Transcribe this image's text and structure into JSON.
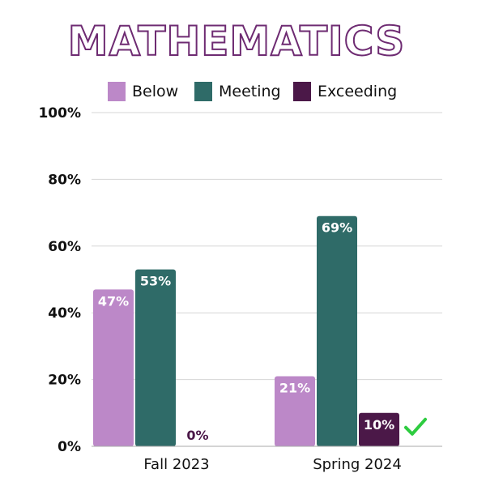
{
  "chart_data": {
    "type": "bar",
    "title": "MATHEMATICS",
    "categories": [
      "Fall 2023",
      "Spring 2024"
    ],
    "series": [
      {
        "name": "Below",
        "color": "#bc88c8",
        "values": [
          47,
          21
        ],
        "labels": [
          "47%",
          "21%"
        ]
      },
      {
        "name": "Meeting",
        "color": "#2f6b68",
        "values": [
          53,
          69
        ],
        "labels": [
          "53%",
          "69%"
        ]
      },
      {
        "name": "Exceeding",
        "color": "#4b1848",
        "values": [
          0,
          10
        ],
        "labels": [
          "0%",
          "10%"
        ]
      }
    ],
    "ylim": [
      0,
      100
    ],
    "yticks": [
      "0%",
      "20%",
      "40%",
      "60%",
      "80%",
      "100%"
    ],
    "ytick_values": [
      0,
      20,
      40,
      60,
      80,
      100
    ],
    "grid": true,
    "legend_position": "top",
    "annotation": {
      "icon": "checkmark-icon",
      "color": "#2ecc40",
      "category": "Spring 2024",
      "series": "Exceeding"
    },
    "title_color": "#6e2b72"
  }
}
